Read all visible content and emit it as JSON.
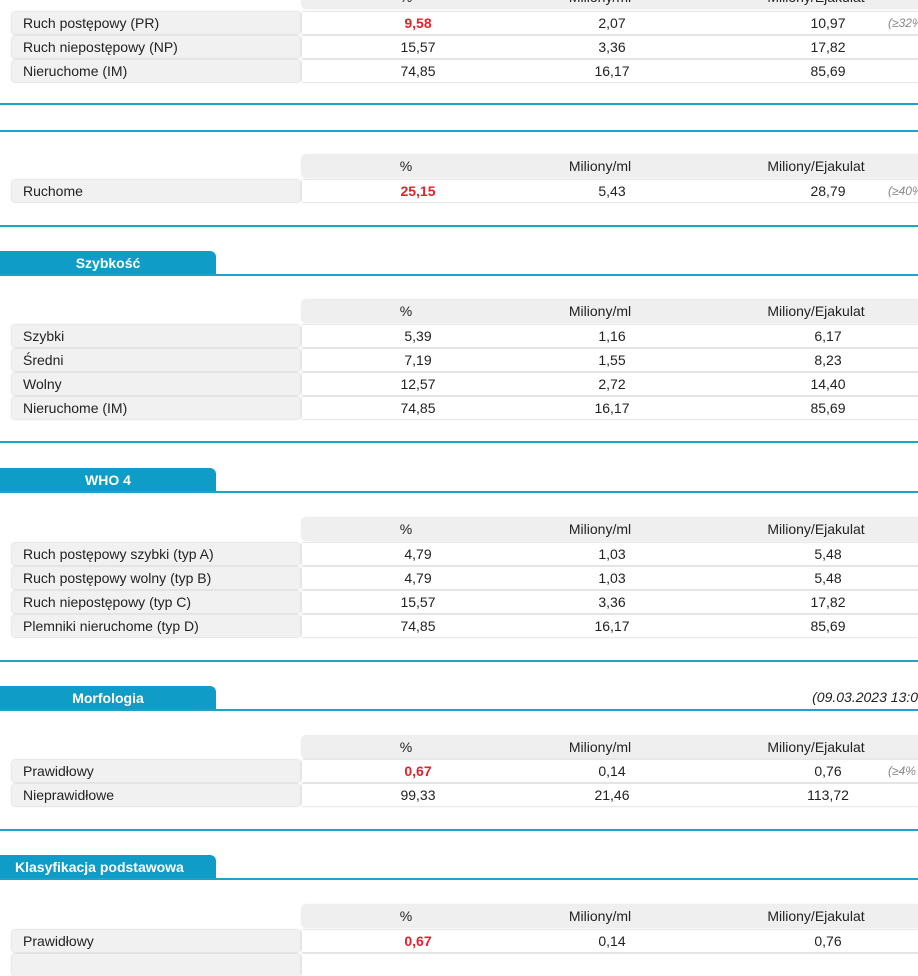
{
  "headers": [
    "%",
    "Miliony/ml",
    "Miliony/Ejakulat"
  ],
  "sections": [
    {
      "title": "",
      "rows": [
        {
          "label": "Ruch postępowy (PR)",
          "pct": "9,58",
          "ml": "2,07",
          "ej": "10,97",
          "ref": "(≥32%",
          "red": true
        },
        {
          "label": "Ruch niepostępowy (NP)",
          "pct": "15,57",
          "ml": "3,36",
          "ej": "17,82"
        },
        {
          "label": "Nieruchome (IM)",
          "pct": "74,85",
          "ml": "16,17",
          "ej": "85,69"
        }
      ]
    },
    {
      "title": "",
      "rows": [
        {
          "label": "Ruchome",
          "pct": "25,15",
          "ml": "5,43",
          "ej": "28,79",
          "ref": "(≥40%",
          "red": true
        }
      ]
    },
    {
      "title": "Szybkość",
      "rows": [
        {
          "label": "Szybki",
          "pct": "5,39",
          "ml": "1,16",
          "ej": "6,17"
        },
        {
          "label": "Średni",
          "pct": "7,19",
          "ml": "1,55",
          "ej": "8,23"
        },
        {
          "label": "Wolny",
          "pct": "12,57",
          "ml": "2,72",
          "ej": "14,40"
        },
        {
          "label": "Nieruchome (IM)",
          "pct": "74,85",
          "ml": "16,17",
          "ej": "85,69"
        }
      ]
    },
    {
      "title": "WHO 4",
      "rows": [
        {
          "label": "Ruch postępowy szybki (typ A)",
          "pct": "4,79",
          "ml": "1,03",
          "ej": "5,48"
        },
        {
          "label": "Ruch postępowy wolny (typ B)",
          "pct": "4,79",
          "ml": "1,03",
          "ej": "5,48"
        },
        {
          "label": "Ruch niepostępowy (typ C)",
          "pct": "15,57",
          "ml": "3,36",
          "ej": "17,82"
        },
        {
          "label": "Plemniki nieruchome (typ D)",
          "pct": "74,85",
          "ml": "16,17",
          "ej": "85,69"
        }
      ]
    },
    {
      "title": "Morfologia",
      "date": "(09.03.2023  13:0",
      "rows": [
        {
          "label": "Prawidłowy",
          "pct": "0,67",
          "ml": "0,14",
          "ej": "0,76",
          "ref": "(≥4%",
          "red": true
        },
        {
          "label": "Nieprawidłowe",
          "pct": "99,33",
          "ml": "21,46",
          "ej": "113,72"
        }
      ]
    },
    {
      "title": "Klasyfikacja podstawowa",
      "rows": [
        {
          "label": "Prawidłowy",
          "pct": "0,67",
          "ml": "0,14",
          "ej": "0,76",
          "red": true
        }
      ]
    }
  ],
  "colors": {
    "accent": "#0f9cc6",
    "alert": "#e8202a"
  }
}
